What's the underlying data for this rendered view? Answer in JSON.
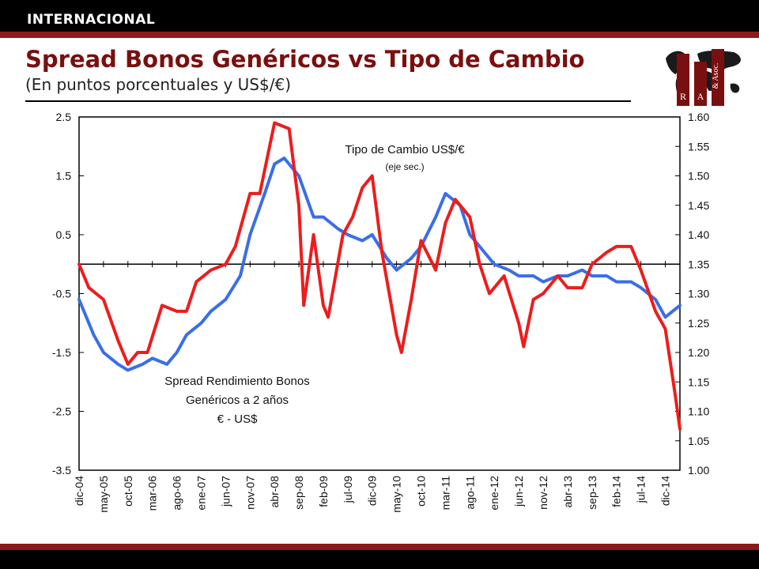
{
  "header": {
    "section_label": "INTERNACIONAL",
    "title": "Spread Bonos Genéricos vs Tipo de Cambio",
    "subtitle": "(En puntos porcentuales y US$/€)"
  },
  "logo": {
    "letters": [
      "R",
      "A",
      "& Asoc."
    ]
  },
  "colors": {
    "accent": "#7a0f0f",
    "stripe": "#8b1a1a",
    "spread": "#3a6ee8",
    "fx": "#ee1c1c"
  },
  "chart_data": {
    "type": "line",
    "title": "Spread Bonos Genéricos vs Tipo de Cambio",
    "grid": false,
    "x_tick_labels": [
      "dic-04",
      "may-05",
      "oct-05",
      "mar-06",
      "ago-06",
      "ene-07",
      "jun-07",
      "nov-07",
      "abr-08",
      "sep-08",
      "feb-09",
      "jul-09",
      "dic-09",
      "may-10",
      "oct-10",
      "mar-11",
      "ago-11",
      "ene-12",
      "jun-12",
      "nov-12",
      "abr-13",
      "sep-13",
      "feb-14",
      "jul-14",
      "dic-14"
    ],
    "y_left": {
      "ylim": [
        -3.5,
        2.5
      ],
      "ticks": [
        "2.5",
        "1.5",
        "0.5",
        "-0.5",
        "-1.5",
        "-2.5",
        "-3.5"
      ]
    },
    "y_right": {
      "ylim": [
        1.0,
        1.6
      ],
      "ticks": [
        "1.60",
        "1.55",
        "1.50",
        "1.45",
        "1.40",
        "1.35",
        "1.30",
        "1.25",
        "1.20",
        "1.15",
        "1.10",
        "1.05",
        "1.00"
      ]
    },
    "annotations": {
      "fx_label": "Tipo de Cambio US$/€",
      "fx_sub": "(eje sec.)",
      "spread_label_1": "Spread Rendimiento Bonos",
      "spread_label_2": "Genéricos a 2 años",
      "spread_label_3": "€ - US$"
    },
    "series": [
      {
        "name": "Spread Rendimiento Bonos Genéricos a 2 años € - US$",
        "axis": "left",
        "x": [
          "dic-04",
          "mar-05",
          "may-05",
          "ago-05",
          "oct-05",
          "ene-06",
          "mar-06",
          "jun-06",
          "ago-06",
          "oct-06",
          "ene-07",
          "mar-07",
          "jun-07",
          "sep-07",
          "nov-07",
          "feb-08",
          "abr-08",
          "jun-08",
          "sep-08",
          "dic-08",
          "feb-09",
          "may-09",
          "jul-09",
          "oct-09",
          "dic-09",
          "mar-10",
          "may-10",
          "ago-10",
          "oct-10",
          "ene-11",
          "mar-11",
          "jun-11",
          "ago-11",
          "nov-11",
          "ene-12",
          "abr-12",
          "jun-12",
          "sep-12",
          "nov-12",
          "feb-13",
          "abr-13",
          "jul-13",
          "sep-13",
          "dic-13",
          "feb-14",
          "may-14",
          "jul-14",
          "oct-14",
          "dic-14",
          "mar-15"
        ],
        "values": [
          -0.6,
          -1.2,
          -1.5,
          -1.7,
          -1.8,
          -1.7,
          -1.6,
          -1.7,
          -1.5,
          -1.2,
          -1.0,
          -0.8,
          -0.6,
          -0.2,
          0.5,
          1.2,
          1.7,
          1.8,
          1.5,
          0.8,
          0.8,
          0.6,
          0.5,
          0.4,
          0.5,
          0.1,
          -0.1,
          0.1,
          0.3,
          0.8,
          1.2,
          1.0,
          0.5,
          0.2,
          0.0,
          -0.1,
          -0.2,
          -0.2,
          -0.3,
          -0.2,
          -0.2,
          -0.1,
          -0.2,
          -0.2,
          -0.3,
          -0.3,
          -0.4,
          -0.6,
          -0.9,
          -0.7
        ]
      },
      {
        "name": "Tipo de Cambio US$/€ (eje sec.)",
        "axis": "right",
        "x": [
          "dic-04",
          "feb-05",
          "may-05",
          "ago-05",
          "oct-05",
          "dic-05",
          "feb-06",
          "may-06",
          "ago-06",
          "oct-06",
          "dic-06",
          "mar-07",
          "jun-07",
          "ago-07",
          "nov-07",
          "ene-08",
          "abr-08",
          "jul-08",
          "sep-08",
          "oct-08",
          "dic-08",
          "feb-09",
          "mar-09",
          "jun-09",
          "ago-09",
          "oct-09",
          "dic-09",
          "feb-10",
          "may-10",
          "jun-10",
          "ago-10",
          "oct-10",
          "ene-11",
          "mar-11",
          "may-11",
          "ago-11",
          "oct-11",
          "dic-11",
          "mar-12",
          "jun-12",
          "jul-12",
          "sep-12",
          "nov-12",
          "feb-13",
          "abr-13",
          "jul-13",
          "sep-13",
          "dic-13",
          "feb-14",
          "may-14",
          "jul-14",
          "oct-14",
          "dic-14",
          "feb-15",
          "mar-15"
        ],
        "values": [
          1.35,
          1.31,
          1.29,
          1.22,
          1.18,
          1.2,
          1.2,
          1.28,
          1.27,
          1.27,
          1.32,
          1.34,
          1.35,
          1.38,
          1.47,
          1.47,
          1.59,
          1.58,
          1.45,
          1.28,
          1.4,
          1.28,
          1.26,
          1.4,
          1.43,
          1.48,
          1.5,
          1.37,
          1.23,
          1.2,
          1.29,
          1.39,
          1.34,
          1.42,
          1.46,
          1.43,
          1.35,
          1.3,
          1.33,
          1.25,
          1.21,
          1.29,
          1.3,
          1.33,
          1.31,
          1.31,
          1.35,
          1.37,
          1.38,
          1.38,
          1.34,
          1.27,
          1.24,
          1.13,
          1.07
        ]
      }
    ]
  }
}
